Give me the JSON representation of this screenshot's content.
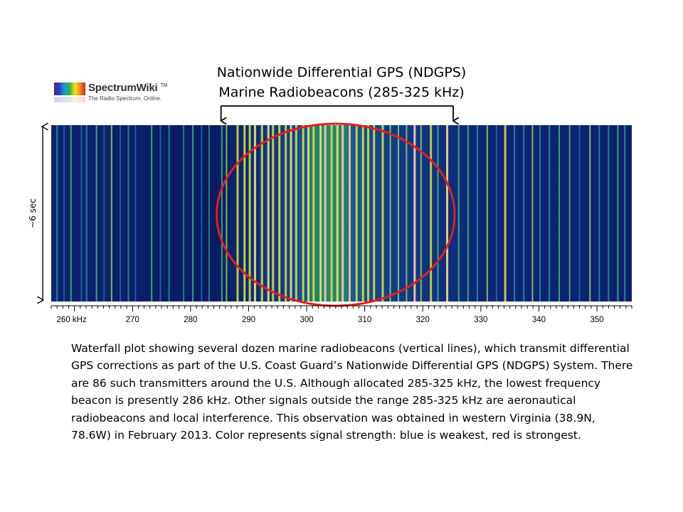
{
  "title": {
    "line1": "Nationwide Differential GPS (NDGPS)",
    "line2": "Marine Radiobeacons (285-325 kHz)"
  },
  "logo": {
    "name": "SpectrumWiki",
    "tm": "TM",
    "tagline": "The Radio Spectrum. Online."
  },
  "colors": {
    "background": "#0a1a6e",
    "weak": "#0a1a6e",
    "strong": "#d81e1e",
    "highlight_ellipse": "#e41e1e",
    "bracket": "#000000"
  },
  "chart_data": {
    "type": "heatmap",
    "description_type": "waterfall",
    "xlabel_unit": "kHz",
    "tick_labels": [
      "260 kHz",
      "270",
      "280",
      "290",
      "300",
      "310",
      "320",
      "330",
      "340",
      "350"
    ],
    "tick_values": [
      260,
      270,
      280,
      290,
      300,
      310,
      320,
      330,
      340,
      350
    ],
    "xlim": [
      256,
      356
    ],
    "y_annotation": "~6 sec",
    "highlight_range_khz": [
      285,
      325
    ],
    "signals": [
      {
        "f": 257.0,
        "s": 0.45
      },
      {
        "f": 258.2,
        "s": 0.3
      },
      {
        "f": 259.4,
        "s": 0.5
      },
      {
        "f": 261.2,
        "s": 0.35
      },
      {
        "f": 262.1,
        "s": 0.42
      },
      {
        "f": 263.8,
        "s": 0.55
      },
      {
        "f": 265.1,
        "s": 0.3
      },
      {
        "f": 266.4,
        "s": 0.62
      },
      {
        "f": 267.9,
        "s": 0.38
      },
      {
        "f": 269.3,
        "s": 0.4
      },
      {
        "f": 270.5,
        "s": 0.3
      },
      {
        "f": 273.3,
        "s": 0.55
      },
      {
        "f": 274.8,
        "s": 0.35
      },
      {
        "f": 276.3,
        "s": 0.45
      },
      {
        "f": 278.8,
        "s": 0.4
      },
      {
        "f": 280.4,
        "s": 0.5
      },
      {
        "f": 281.9,
        "s": 0.32
      },
      {
        "f": 283.2,
        "s": 0.45
      },
      {
        "f": 285.4,
        "s": 0.5
      },
      {
        "f": 286.2,
        "s": 0.62
      },
      {
        "f": 288.1,
        "s": 0.7
      },
      {
        "f": 289.3,
        "s": 0.78
      },
      {
        "f": 290.2,
        "s": 0.72
      },
      {
        "f": 291.1,
        "s": 0.85
      },
      {
        "f": 292.3,
        "s": 0.75
      },
      {
        "f": 293.4,
        "s": 0.82
      },
      {
        "f": 294.2,
        "s": 0.7
      },
      {
        "f": 295.3,
        "s": 0.78
      },
      {
        "f": 296.4,
        "s": 0.72
      },
      {
        "f": 297.3,
        "s": 0.8
      },
      {
        "f": 298.2,
        "s": 0.7
      },
      {
        "f": 299.4,
        "s": 0.76
      },
      {
        "f": 300.3,
        "s": 0.82
      },
      {
        "f": 301.2,
        "s": 0.78
      },
      {
        "f": 302.4,
        "s": 0.8
      },
      {
        "f": 303.2,
        "s": 0.9
      },
      {
        "f": 304.3,
        "s": 0.76
      },
      {
        "f": 305.3,
        "s": 0.82
      },
      {
        "f": 306.2,
        "s": 0.88
      },
      {
        "f": 307.4,
        "s": 0.9
      },
      {
        "f": 308.6,
        "s": 0.7
      },
      {
        "f": 309.7,
        "s": 0.78
      },
      {
        "f": 310.6,
        "s": 0.7
      },
      {
        "f": 311.6,
        "s": 0.76
      },
      {
        "f": 313.1,
        "s": 0.72
      },
      {
        "f": 314.4,
        "s": 0.68
      },
      {
        "f": 315.8,
        "s": 0.66
      },
      {
        "f": 317.2,
        "s": 0.6
      },
      {
        "f": 318.6,
        "s": 0.9
      },
      {
        "f": 319.7,
        "s": 0.62
      },
      {
        "f": 321.4,
        "s": 0.7
      },
      {
        "f": 322.6,
        "s": 0.58
      },
      {
        "f": 324.2,
        "s": 0.82
      },
      {
        "f": 326.2,
        "s": 0.55
      },
      {
        "f": 327.8,
        "s": 0.5
      },
      {
        "f": 329.4,
        "s": 0.45
      },
      {
        "f": 331.1,
        "s": 0.62
      },
      {
        "f": 332.7,
        "s": 0.38
      },
      {
        "f": 334.2,
        "s": 0.7
      },
      {
        "f": 335.8,
        "s": 0.4
      },
      {
        "f": 337.4,
        "s": 0.45
      },
      {
        "f": 338.9,
        "s": 0.6
      },
      {
        "f": 340.2,
        "s": 0.4
      },
      {
        "f": 341.8,
        "s": 0.45
      },
      {
        "f": 343.5,
        "s": 0.5
      },
      {
        "f": 345.3,
        "s": 0.55
      },
      {
        "f": 347.0,
        "s": 0.35
      },
      {
        "f": 348.8,
        "s": 0.68
      },
      {
        "f": 350.4,
        "s": 0.4
      },
      {
        "f": 352.0,
        "s": 0.45
      },
      {
        "f": 353.6,
        "s": 0.5
      },
      {
        "f": 354.8,
        "s": 0.45
      }
    ]
  },
  "caption": "Waterfall plot showing several dozen marine radiobeacons (vertical lines), which transmit differential GPS corrections as part of the U.S. Coast Guard’s Nationwide Differential GPS (NDGPS) System. There are 86 such transmitters around the U.S. Although allocated 285-325 kHz, the lowest frequency beacon is presently 286 kHz. Other signals outside the range 285-325 kHz are aeronautical radiobeacons and local interference.  This observation was obtained in western Virginia (38.9N, 78.6W) in February 2013. Color represents signal strength: blue is weakest, red is strongest."
}
